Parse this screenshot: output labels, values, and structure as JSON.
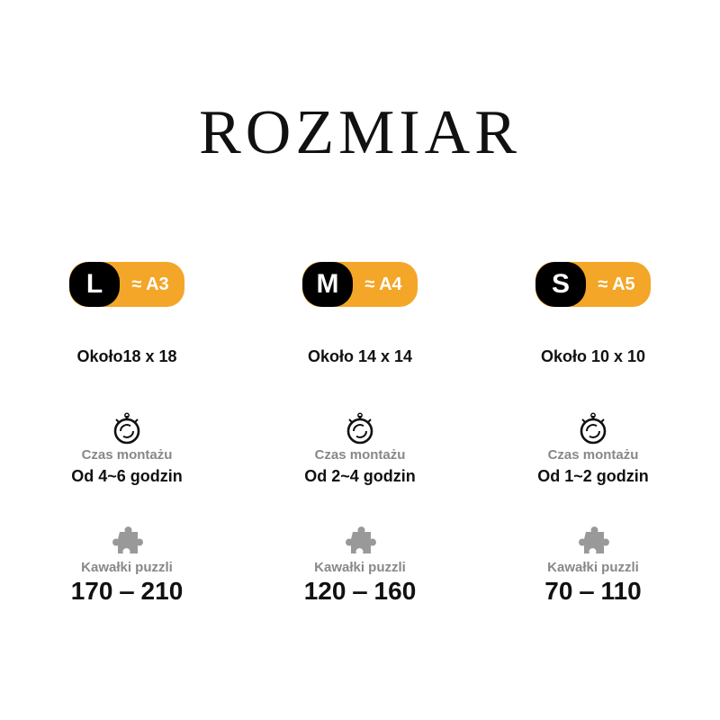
{
  "title": "ROZMIAR",
  "colors": {
    "accent": "#f4a628",
    "badge_dark": "#000000",
    "label_gray": "#888888"
  },
  "icons": {
    "time": "stopwatch-icon",
    "pieces": "puzzle-piece-icon"
  },
  "sizes": [
    {
      "size": "L",
      "paper": "≈ A3",
      "dimensions": "Około18 x 18",
      "time_label": "Czas montażu",
      "time": "Od 4~6 godzin",
      "pieces_label": "Kawałki puzzli",
      "pieces": "170 ‒ 210"
    },
    {
      "size": "M",
      "paper": "≈ A4",
      "dimensions": "Około 14 x 14",
      "time_label": "Czas montażu",
      "time": "Od 2~4 godzin",
      "pieces_label": "Kawałki puzzli",
      "pieces": "120 ‒ 160"
    },
    {
      "size": "S",
      "paper": "≈ A5",
      "dimensions": "Około 10 x 10",
      "time_label": "Czas montażu",
      "time": "Od 1~2 godzin",
      "pieces_label": "Kawałki puzzli",
      "pieces": "70 ‒ 110"
    }
  ]
}
